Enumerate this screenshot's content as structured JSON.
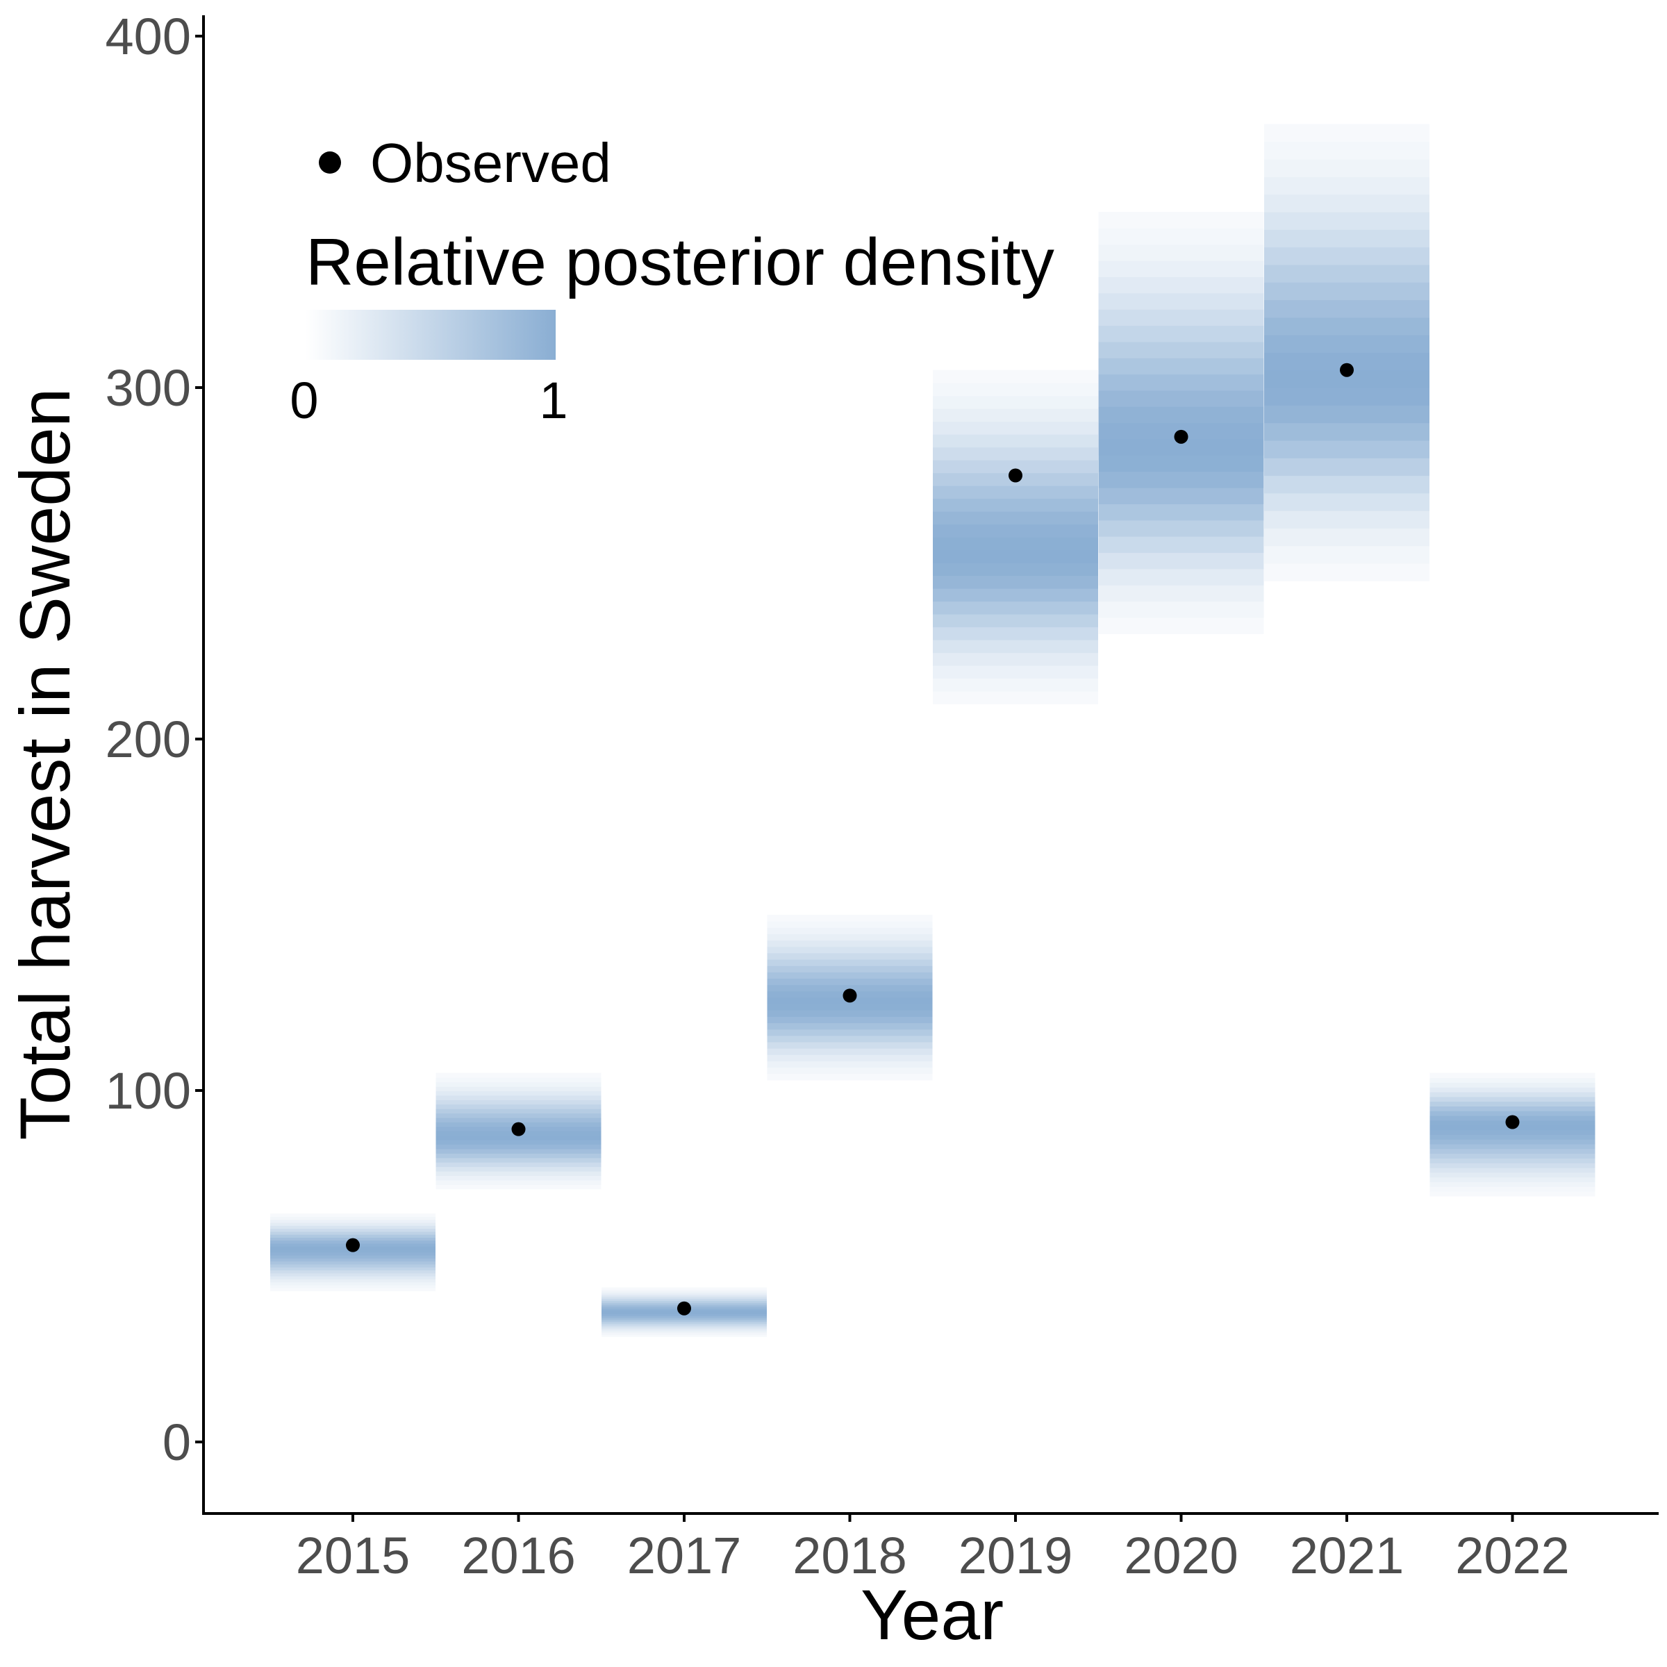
{
  "chart_data": {
    "type": "heatmap",
    "xlabel": "Year",
    "ylabel": "Total harvest in Sweden",
    "categories": [
      "2015",
      "2016",
      "2017",
      "2018",
      "2019",
      "2020",
      "2021",
      "2022"
    ],
    "ylim": [
      -21,
      405
    ],
    "yticks": [
      0,
      100,
      200,
      300,
      400
    ],
    "grid": false,
    "observed": [
      56,
      89,
      38,
      127,
      275,
      286,
      305,
      91
    ],
    "posterior": [
      {
        "year": "2015",
        "mode": 55,
        "low": 43,
        "high": 65
      },
      {
        "year": "2016",
        "mode": 87,
        "low": 72,
        "high": 105
      },
      {
        "year": "2017",
        "mode": 37,
        "low": 30,
        "high": 44
      },
      {
        "year": "2018",
        "mode": 125,
        "low": 103,
        "high": 150
      },
      {
        "year": "2019",
        "mode": 253,
        "low": 210,
        "high": 305
      },
      {
        "year": "2020",
        "mode": 283,
        "low": 230,
        "high": 350
      },
      {
        "year": "2021",
        "mode": 302,
        "low": 245,
        "high": 375
      },
      {
        "year": "2022",
        "mode": 90,
        "low": 70,
        "high": 105
      }
    ],
    "legend": {
      "point_label": "Observed",
      "fill_title": "Relative posterior density",
      "fill_min_label": "0",
      "fill_max_label": "1",
      "placement": "top-left"
    },
    "colors": {
      "fill_low": "#ffffff",
      "fill_high": "#8aaed3",
      "point": "#000000",
      "axis": "#000000"
    }
  }
}
